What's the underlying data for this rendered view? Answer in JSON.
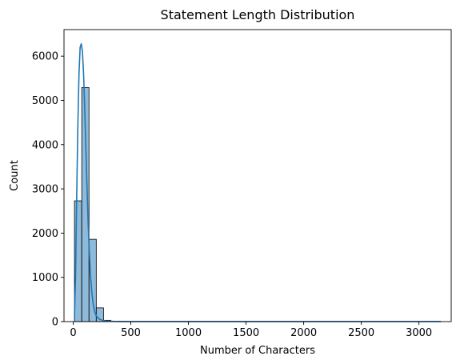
{
  "chart_data": {
    "type": "bar",
    "title": "Statement Length Distribution",
    "xlabel": "Number of Characters",
    "ylabel": "Count",
    "xlim": [
      -80,
      3280
    ],
    "ylim": [
      0,
      6600
    ],
    "x_ticks": [
      0,
      500,
      1000,
      1500,
      2000,
      2500,
      3000
    ],
    "y_ticks": [
      0,
      1000,
      2000,
      3000,
      4000,
      5000,
      6000
    ],
    "bin_width": 63,
    "bins": [
      {
        "start": 11,
        "end": 74,
        "count": 2730
      },
      {
        "start": 74,
        "end": 137,
        "count": 5290
      },
      {
        "start": 137,
        "end": 200,
        "count": 1860
      },
      {
        "start": 200,
        "end": 263,
        "count": 310
      },
      {
        "start": 263,
        "end": 326,
        "count": 30
      }
    ],
    "kde": {
      "x": [
        11,
        20,
        30,
        40,
        50,
        60,
        70,
        80,
        90,
        100,
        110,
        120,
        130,
        140,
        150,
        160,
        170,
        180,
        190,
        200,
        220,
        240,
        260,
        280,
        300,
        350,
        400,
        500,
        700,
        1000,
        1500,
        2000,
        2500,
        3000,
        3190
      ],
      "y": [
        120,
        1000,
        2800,
        4400,
        5600,
        6200,
        6280,
        6100,
        5600,
        4800,
        3900,
        3000,
        2200,
        1550,
        1050,
        700,
        460,
        300,
        190,
        130,
        70,
        40,
        25,
        15,
        10,
        5,
        3,
        2,
        1,
        1,
        1,
        1,
        1,
        1,
        1
      ]
    },
    "colors": {
      "bar_fill": "#8fbad9",
      "bar_edge": "#000000",
      "kde_line": "#1f77b4"
    },
    "grid": false,
    "legend": "none"
  }
}
